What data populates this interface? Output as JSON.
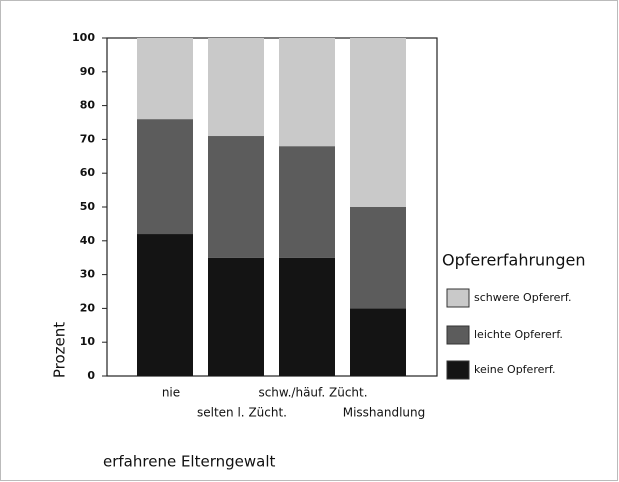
{
  "chart_data": {
    "type": "stacked_bar",
    "categories": [
      "nie",
      "selten l. Zücht.",
      "schw./häuf. Zücht.",
      "Misshandlung"
    ],
    "series": [
      {
        "name": "keine Opfererf.",
        "color": "#141414",
        "values": [
          42,
          35,
          35,
          20
        ]
      },
      {
        "name": "leichte  Opfererf.",
        "color": "#5c5c5c",
        "values": [
          34,
          36,
          33,
          30
        ]
      },
      {
        "name": "schwere Opfererf.",
        "color": "#c9c9c9",
        "values": [
          24,
          29,
          32,
          50
        ]
      }
    ],
    "ylim": [
      0,
      100
    ],
    "yticks": [
      0,
      10,
      20,
      30,
      40,
      50,
      60,
      70,
      80,
      90,
      100
    ],
    "y_label": "Prozent",
    "x_label": "erfahrene Elterngewalt",
    "legend_title": "Opfererfahrungen",
    "legend": "right",
    "grid": false
  }
}
